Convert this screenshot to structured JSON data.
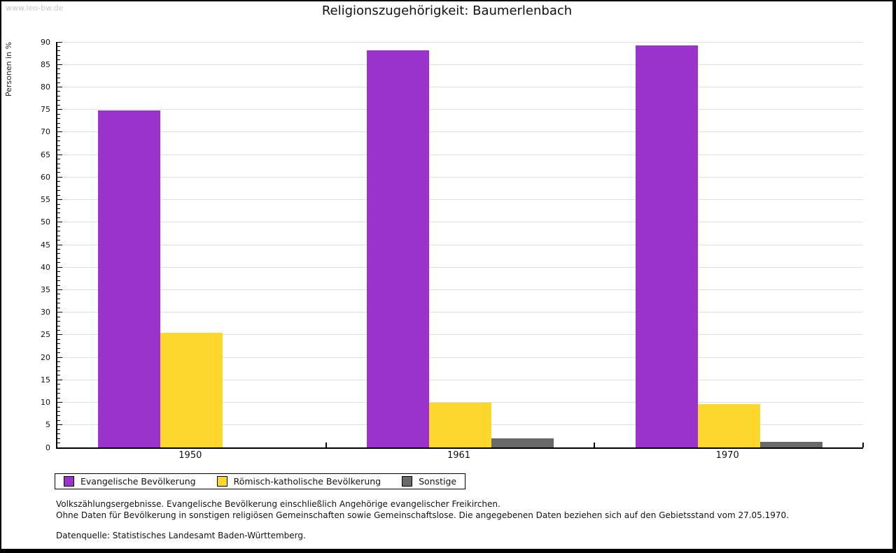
{
  "watermark": "www.leo-bw.de",
  "title": "Religionszugehörigkeit: Baumerlenbach",
  "chart_data": {
    "type": "bar",
    "title": "Religionszugehörigkeit: Baumerlenbach",
    "xlabel": "",
    "ylabel": "Personen in %",
    "ylim": [
      0,
      90
    ],
    "ytick_step": 5,
    "yminor_step": 1,
    "grid": true,
    "legend_position": "bottom",
    "categories": [
      "1950",
      "1961",
      "1970"
    ],
    "series": [
      {
        "name": "Evangelische Bevölkerung",
        "color": "#9933cc",
        "values": [
          74.8,
          88.2,
          89.2
        ]
      },
      {
        "name": "Römisch-katholische Bevölkerung",
        "color": "#fdd62e",
        "values": [
          25.4,
          10.0,
          9.7
        ]
      },
      {
        "name": "Sonstige",
        "color": "#696969",
        "values": [
          0.0,
          2.0,
          1.2
        ]
      }
    ]
  },
  "colors": {
    "gridline": "#e0e0e0",
    "axis": "#000000",
    "watermark": "#c9c9c9"
  },
  "footnotes": {
    "line1": "Volkszählungsergebnisse. Evangelische Bevölkerung einschließlich Angehörige evangelischer Freikirchen.",
    "line2": "Ohne Daten für Bevölkerung in sonstigen religiösen Gemeinschaften sowie Gemeinschaftslose. Die angegebenen Daten beziehen sich auf den Gebietsstand vom 27.05.1970.",
    "source": "Datenquelle: Statistisches Landesamt Baden-Württemberg."
  }
}
